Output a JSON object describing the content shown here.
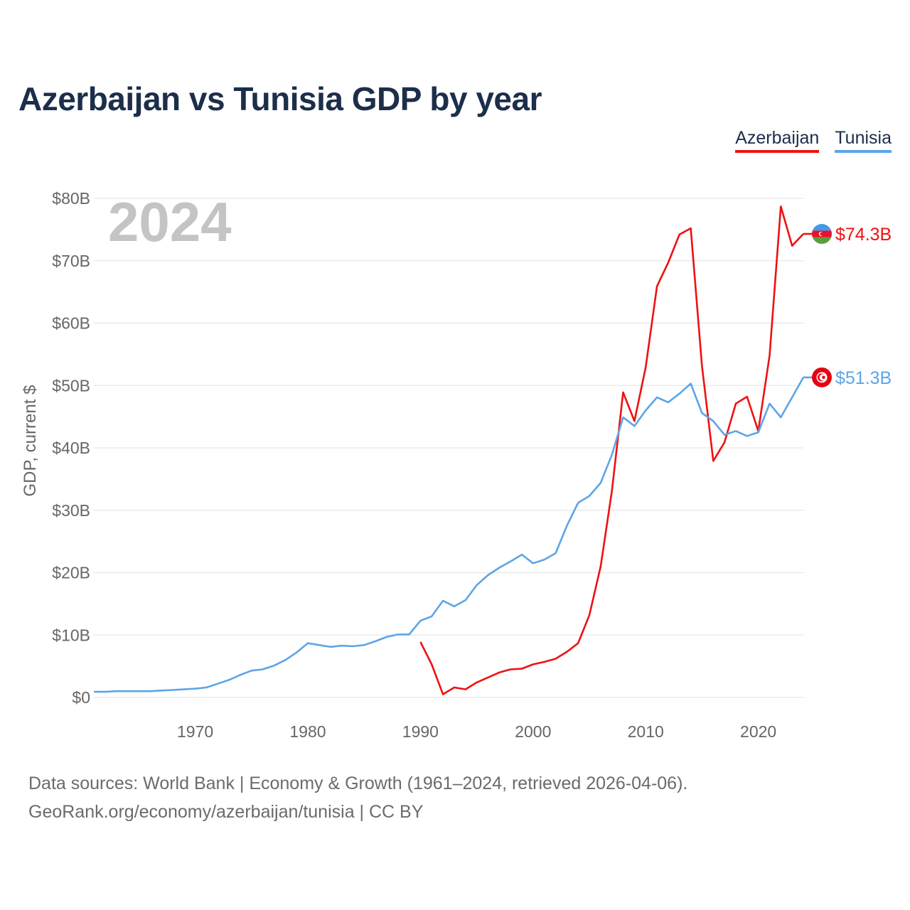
{
  "chart_data": {
    "type": "line",
    "title": "Azerbaijan vs Tunisia GDP by year",
    "ylabel": "GDP, current $",
    "xlabel": "",
    "year_watermark": "2024",
    "xlim": [
      1961,
      2024
    ],
    "ylim": [
      0,
      80
    ],
    "x_ticks": [
      1970,
      1980,
      1990,
      2000,
      2010,
      2020
    ],
    "x_tick_labels": [
      "1970",
      "1980",
      "1990",
      "2000",
      "2010",
      "2020"
    ],
    "y_ticks": [
      0,
      10,
      20,
      30,
      40,
      50,
      60,
      70,
      80
    ],
    "y_tick_labels": [
      "$0",
      "$10B",
      "$20B",
      "$30B",
      "$40B",
      "$50B",
      "$60B",
      "$70B",
      "$80B"
    ],
    "grid": true,
    "legend_position": "top-right",
    "series": [
      {
        "name": "Azerbaijan",
        "color": "#ee1111",
        "end_label": "$74.3B",
        "flag_colors": [
          "#3f9be8",
          "#e8112d",
          "#5a9e3a"
        ],
        "x": [
          1990,
          1991,
          1992,
          1993,
          1994,
          1995,
          1996,
          1997,
          1998,
          1999,
          2000,
          2001,
          2002,
          2003,
          2004,
          2005,
          2006,
          2007,
          2008,
          2009,
          2010,
          2011,
          2012,
          2013,
          2014,
          2015,
          2016,
          2017,
          2018,
          2019,
          2020,
          2021,
          2022,
          2023,
          2024
        ],
        "values": [
          8.9,
          5.3,
          0.5,
          1.6,
          1.3,
          2.4,
          3.2,
          4.0,
          4.5,
          4.6,
          5.3,
          5.7,
          6.2,
          7.3,
          8.7,
          13.2,
          21.0,
          33.1,
          48.9,
          44.3,
          52.9,
          65.9,
          69.7,
          74.2,
          75.2,
          53.1,
          37.9,
          40.9,
          47.1,
          48.2,
          42.7,
          54.8,
          78.7,
          72.4,
          74.3
        ]
      },
      {
        "name": "Tunisia",
        "color": "#5da5e6",
        "end_label": "$51.3B",
        "flag_colors": [
          "#e70013",
          "#ffffff"
        ],
        "x": [
          1961,
          1962,
          1963,
          1964,
          1965,
          1966,
          1967,
          1968,
          1969,
          1970,
          1971,
          1972,
          1973,
          1974,
          1975,
          1976,
          1977,
          1978,
          1979,
          1980,
          1981,
          1982,
          1983,
          1984,
          1985,
          1986,
          1987,
          1988,
          1989,
          1990,
          1991,
          1992,
          1993,
          1994,
          1995,
          1996,
          1997,
          1998,
          1999,
          2000,
          2001,
          2002,
          2003,
          2004,
          2005,
          2006,
          2007,
          2008,
          2009,
          2010,
          2011,
          2012,
          2013,
          2014,
          2015,
          2016,
          2017,
          2018,
          2019,
          2020,
          2021,
          2022,
          2023,
          2024
        ],
        "values": [
          0.9,
          0.9,
          1.0,
          1.0,
          1.0,
          1.0,
          1.1,
          1.2,
          1.3,
          1.4,
          1.6,
          2.2,
          2.8,
          3.6,
          4.3,
          4.5,
          5.1,
          6.0,
          7.2,
          8.7,
          8.4,
          8.1,
          8.3,
          8.2,
          8.4,
          9.0,
          9.7,
          10.1,
          10.1,
          12.3,
          13.0,
          15.5,
          14.6,
          15.6,
          18.0,
          19.6,
          20.8,
          21.8,
          22.9,
          21.5,
          22.1,
          23.1,
          27.5,
          31.2,
          32.3,
          34.4,
          38.9,
          44.9,
          43.5,
          46.0,
          48.1,
          47.3,
          48.7,
          50.3,
          45.6,
          44.3,
          42.1,
          42.7,
          41.9,
          42.5,
          47.1,
          44.9,
          48.1,
          51.3
        ]
      }
    ]
  },
  "legend": {
    "items": [
      "Azerbaijan",
      "Tunisia"
    ]
  },
  "footer": {
    "line1": "Data sources: World Bank | Economy & Growth (1961–2024, retrieved 2026-04-06).",
    "line2": "GeoRank.org/economy/azerbaijan/tunisia | CC BY"
  }
}
